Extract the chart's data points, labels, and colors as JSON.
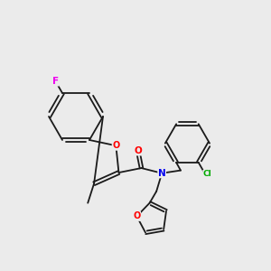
{
  "background_color": "#ebebeb",
  "bond_color": "#1a1a1a",
  "atom_colors": {
    "F": "#ee00ee",
    "O": "#ff0000",
    "N": "#0000ee",
    "Cl": "#00aa00",
    "C": "#1a1a1a"
  },
  "figsize": [
    3.0,
    3.0
  ],
  "dpi": 100,
  "lw": 1.3,
  "fontsize": 7.5
}
